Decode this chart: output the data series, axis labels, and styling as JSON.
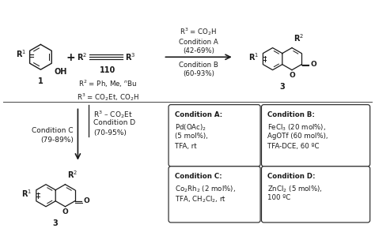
{
  "bg_color": "#ffffff",
  "text_color": "#1a1a1a",
  "fig_width": 4.74,
  "fig_height": 3.13,
  "dpi": 100,
  "r2_options": "R$^{2}$ = Ph, Me, $^{n}$Bu",
  "r3_options": "R$^{3}$ = CO$_{2}$Et, CO$_{2}$H",
  "top_arrow_above1": "R$^{3}$ = CO$_{2}$H",
  "top_arrow_above2": "Condition A",
  "top_arrow_above3": "(42-69%)",
  "top_arrow_below1": "Condition B",
  "top_arrow_below2": "(60-93%)",
  "left_label1": "Condition C",
  "left_label2": "(79-89%)",
  "right_label1": "R$^{3}$ – CO$_{2}$Et",
  "right_label2": "Condition D",
  "right_label3": "(70-95%)",
  "boxA_title": "Condition A:",
  "boxA_line1": "Pd(OAc)$_{2}$",
  "boxA_line2": "(5 mol%),",
  "boxA_line3": "TFA, rt",
  "boxB_title": "Condition B:",
  "boxB_line1": "FeCl$_{3}$ (20 mol%),",
  "boxB_line2": "AgOTf (60 mol%),",
  "boxB_line3": "TFA-DCE, 60 ºC",
  "boxC_title": "Condition C:",
  "boxC_line1": "Co$_{2}$Rh$_{2}$ (2 mol%),",
  "boxC_line2": "TFA, CH$_{2}$Cl$_{2}$, rt",
  "boxD_title": "Condition D:",
  "boxD_line1": "ZnCl$_{2}$ (5 mol%),",
  "boxD_line2": "100 ºC"
}
